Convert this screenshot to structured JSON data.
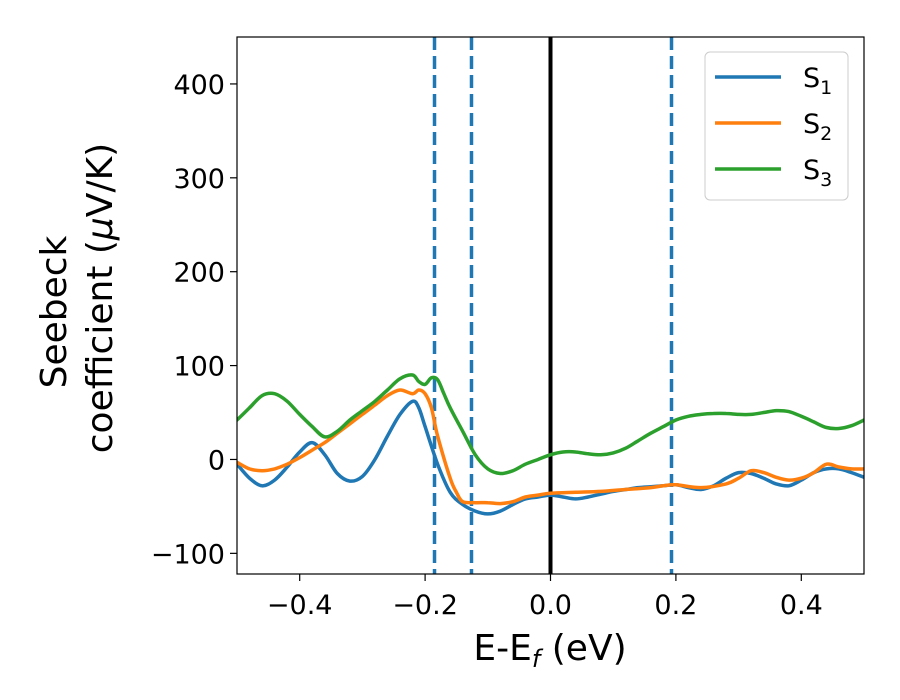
{
  "chart_data": {
    "type": "line",
    "xlabel": "E-E",
    "xlabel_sub": "f",
    "xlabel_unit": " (eV)",
    "ylabel_line1": "Seebeck",
    "ylabel_line2": "coefficient  (",
    "ylabel_mu": "μ",
    "ylabel_unit": "V/K)",
    "xlim": [
      -0.5,
      0.5
    ],
    "ylim": [
      -122,
      450
    ],
    "x_ticks": [
      -0.4,
      -0.2,
      0.0,
      0.2,
      0.4
    ],
    "x_tick_labels": [
      "−0.4",
      "−0.2",
      "0.0",
      "0.2",
      "0.4"
    ],
    "y_ticks": [
      -100,
      0,
      100,
      200,
      300,
      400
    ],
    "y_tick_labels": [
      "−100",
      "0",
      "100",
      "200",
      "300",
      "400"
    ],
    "grid": false,
    "legend_position": "top-right",
    "vlines": [
      {
        "x": 0.0,
        "style": "solid",
        "color": "#000000"
      },
      {
        "x": -0.185,
        "style": "dashed",
        "color": "#1f77b4"
      },
      {
        "x": -0.126,
        "style": "dashed",
        "color": "#1f77b4"
      },
      {
        "x": 0.193,
        "style": "dashed",
        "color": "#1f77b4"
      }
    ],
    "series": [
      {
        "name": "S",
        "sub": "1",
        "color": "#1f77b4",
        "x": [
          -0.5,
          -0.48,
          -0.46,
          -0.44,
          -0.42,
          -0.4,
          -0.38,
          -0.36,
          -0.34,
          -0.32,
          -0.3,
          -0.28,
          -0.26,
          -0.24,
          -0.22,
          -0.21,
          -0.2,
          -0.18,
          -0.16,
          -0.14,
          -0.12,
          -0.1,
          -0.08,
          -0.06,
          -0.04,
          -0.02,
          0.0,
          0.02,
          0.04,
          0.06,
          0.08,
          0.1,
          0.12,
          0.14,
          0.16,
          0.18,
          0.2,
          0.22,
          0.24,
          0.26,
          0.28,
          0.3,
          0.32,
          0.34,
          0.36,
          0.38,
          0.4,
          0.42,
          0.44,
          0.46,
          0.48,
          0.5
        ],
        "y": [
          -5,
          -20,
          -28,
          -22,
          -8,
          8,
          18,
          5,
          -15,
          -23,
          -18,
          0,
          25,
          48,
          62,
          55,
          35,
          -5,
          -35,
          -48,
          -55,
          -58,
          -55,
          -48,
          -42,
          -40,
          -38,
          -40,
          -42,
          -40,
          -37,
          -34,
          -32,
          -30,
          -29,
          -28,
          -27,
          -30,
          -32,
          -28,
          -20,
          -14,
          -15,
          -20,
          -26,
          -28,
          -22,
          -14,
          -10,
          -10,
          -14,
          -19
        ]
      },
      {
        "name": "S",
        "sub": "2",
        "color": "#ff7f0e",
        "x": [
          -0.5,
          -0.48,
          -0.46,
          -0.44,
          -0.42,
          -0.4,
          -0.38,
          -0.36,
          -0.34,
          -0.32,
          -0.3,
          -0.28,
          -0.26,
          -0.24,
          -0.22,
          -0.21,
          -0.2,
          -0.19,
          -0.18,
          -0.16,
          -0.15,
          -0.14,
          -0.12,
          -0.1,
          -0.08,
          -0.06,
          -0.04,
          -0.02,
          0.0,
          0.04,
          0.08,
          0.12,
          0.16,
          0.18,
          0.2,
          0.24,
          0.28,
          0.3,
          0.32,
          0.34,
          0.36,
          0.38,
          0.4,
          0.42,
          0.44,
          0.46,
          0.48,
          0.5
        ],
        "y": [
          -3,
          -10,
          -12,
          -10,
          -5,
          2,
          10,
          18,
          28,
          38,
          48,
          58,
          68,
          74,
          70,
          74,
          70,
          55,
          25,
          -20,
          -35,
          -45,
          -46,
          -46,
          -47,
          -45,
          -40,
          -38,
          -36,
          -35,
          -34,
          -32,
          -30,
          -28,
          -27,
          -30,
          -26,
          -20,
          -12,
          -14,
          -19,
          -22,
          -20,
          -14,
          -5,
          -8,
          -10,
          -10
        ]
      },
      {
        "name": "S",
        "sub": "3",
        "color": "#2ca02c",
        "x": [
          -0.5,
          -0.48,
          -0.46,
          -0.44,
          -0.42,
          -0.4,
          -0.38,
          -0.36,
          -0.34,
          -0.32,
          -0.3,
          -0.28,
          -0.26,
          -0.24,
          -0.22,
          -0.21,
          -0.2,
          -0.19,
          -0.18,
          -0.17,
          -0.16,
          -0.14,
          -0.12,
          -0.1,
          -0.08,
          -0.06,
          -0.04,
          -0.02,
          0.0,
          0.02,
          0.04,
          0.06,
          0.08,
          0.1,
          0.12,
          0.14,
          0.16,
          0.18,
          0.2,
          0.22,
          0.24,
          0.26,
          0.28,
          0.3,
          0.32,
          0.34,
          0.36,
          0.38,
          0.4,
          0.42,
          0.44,
          0.46,
          0.48,
          0.5
        ],
        "y": [
          42,
          55,
          68,
          70,
          62,
          48,
          35,
          24,
          30,
          42,
          52,
          62,
          74,
          86,
          90,
          83,
          80,
          87,
          85,
          70,
          55,
          30,
          5,
          -10,
          -15,
          -12,
          -5,
          0,
          5,
          8,
          8,
          6,
          5,
          7,
          12,
          20,
          28,
          35,
          42,
          46,
          48,
          49,
          49,
          48,
          48,
          50,
          52,
          51,
          46,
          40,
          34,
          33,
          36,
          42
        ]
      }
    ]
  }
}
